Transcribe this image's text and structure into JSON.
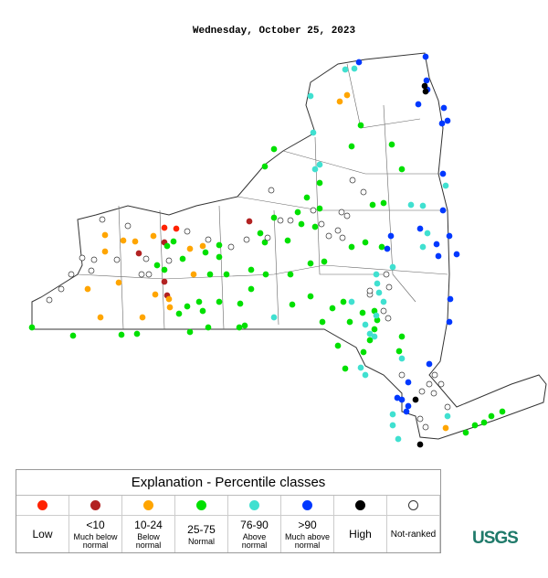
{
  "title": "Wednesday, October 25, 2023",
  "legend": {
    "title": "Explanation - Percentile classes",
    "classes": [
      {
        "label": "Low",
        "color": "#ff2200"
      },
      {
        "label": "<10",
        "sublabel": "Much below normal",
        "color": "#b22222"
      },
      {
        "label": "10-24",
        "sublabel": "Below normal",
        "color": "#ffa500"
      },
      {
        "label": "25-75",
        "sublabel": "Normal",
        "color": "#00e000"
      },
      {
        "label": "76-90",
        "sublabel": "Above normal",
        "color": "#40e0d0"
      },
      {
        "label": ">90",
        "sublabel": "Much above normal",
        "color": "#0038ff"
      },
      {
        "label": "High",
        "color": "#000000"
      },
      {
        "label": "Not-ranked",
        "color": "#ffffff"
      }
    ]
  },
  "logo": "USGS"
}
